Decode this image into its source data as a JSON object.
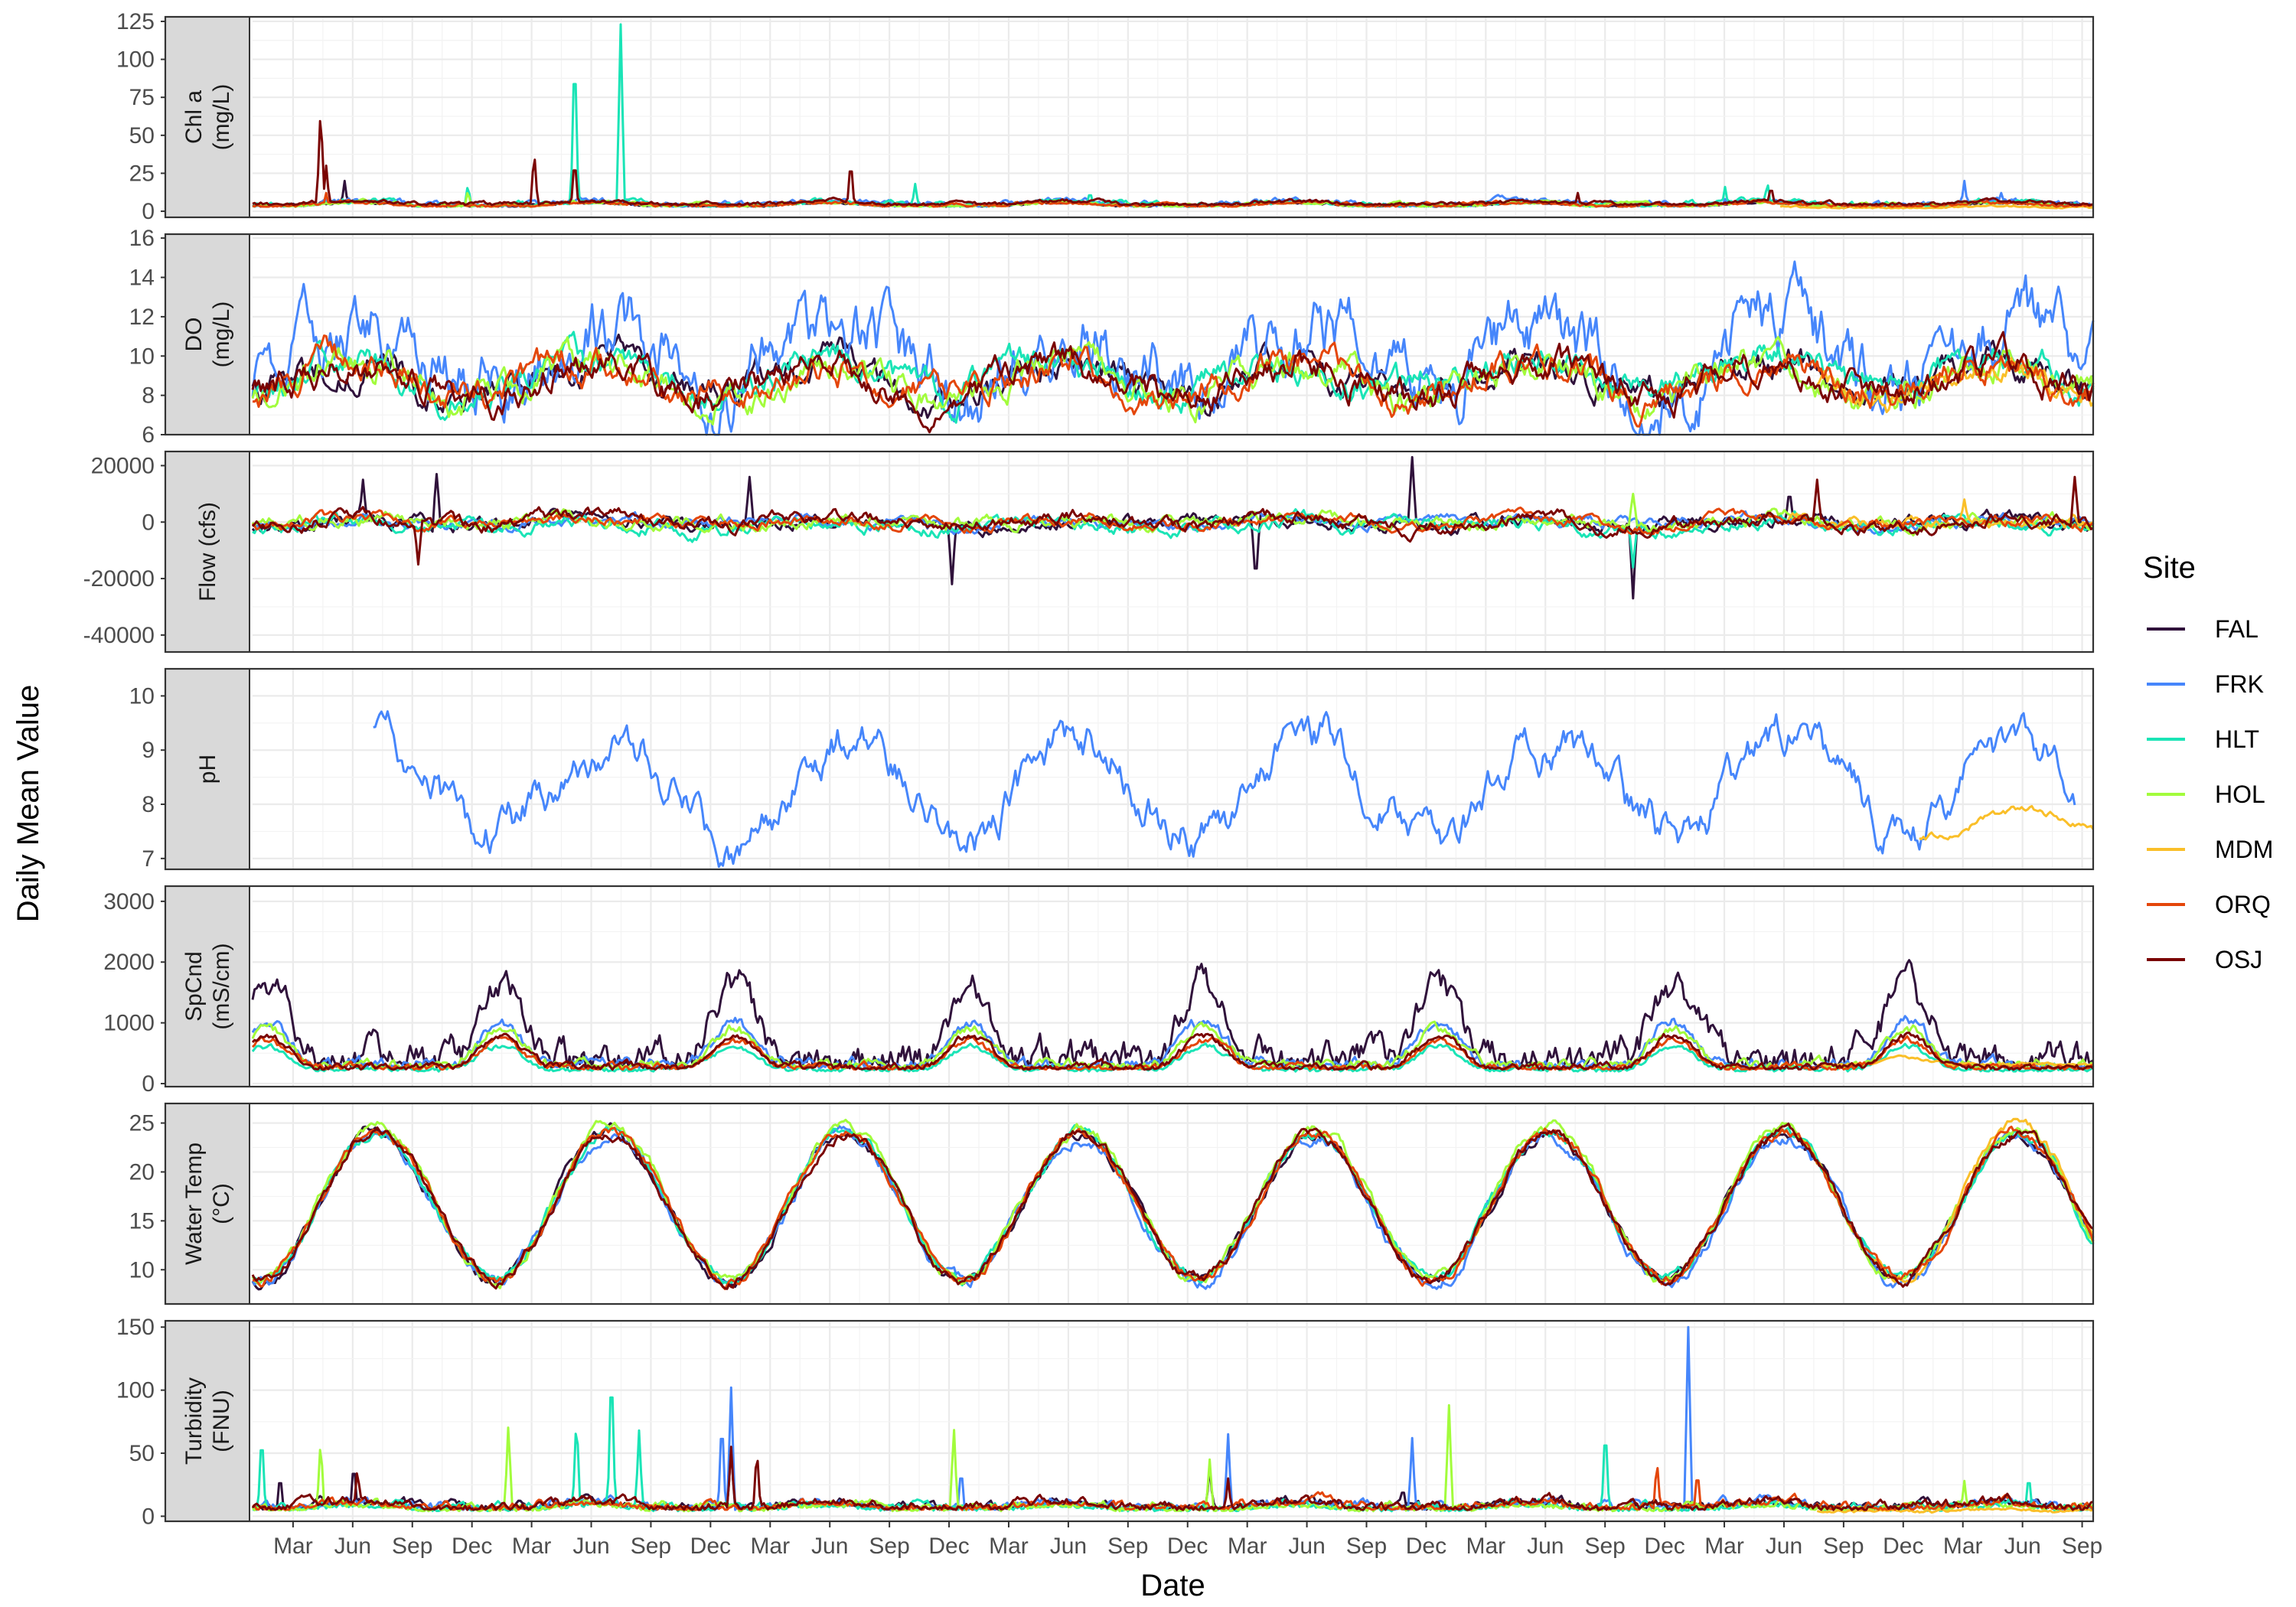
{
  "chart_data": {
    "type": "line",
    "xlabel": "Date",
    "ylabel": "Daily Mean Value",
    "x_tick_labels": [
      "Mar",
      "Jun",
      "Sep",
      "Dec",
      "Mar",
      "Jun",
      "Sep",
      "Dec",
      "Mar",
      "Jun",
      "Sep",
      "Dec",
      "Mar",
      "Jun",
      "Sep",
      "Dec",
      "Mar",
      "Jun",
      "Sep",
      "Dec",
      "Mar",
      "Jun",
      "Sep",
      "Dec",
      "Mar",
      "Jun",
      "Sep",
      "Dec",
      "Mar",
      "Jun",
      "Sep"
    ],
    "legend": {
      "title": "Site",
      "position": "right",
      "entries": [
        {
          "name": "FAL",
          "color": "#30123b"
        },
        {
          "name": "FRK",
          "color": "#4686fb"
        },
        {
          "name": "HLT",
          "color": "#1ae4b6"
        },
        {
          "name": "HOL",
          "color": "#a2fc3c"
        },
        {
          "name": "MDM",
          "color": "#fabf29"
        },
        {
          "name": "ORQ",
          "color": "#e4460a"
        },
        {
          "name": "OSJ",
          "color": "#7a0403"
        }
      ]
    },
    "grid": true,
    "panels": [
      {
        "strip": [
          "Chl a",
          "(mg/L)"
        ],
        "ylim": [
          -4,
          128
        ],
        "yticks": [
          0,
          25,
          50,
          75,
          100,
          125
        ],
        "ytick_labels": [
          "0",
          "25",
          "50",
          "75",
          "100",
          "125"
        ],
        "series": [
          {
            "name": "FAL",
            "kind": "spiky",
            "base": 3,
            "amp": 2,
            "noise": 1,
            "spikes": [
              [
                0.05,
                20
              ],
              [
                0.7,
                8
              ],
              [
                0.93,
                6
              ]
            ]
          },
          {
            "name": "FRK",
            "kind": "spiky",
            "base": 3,
            "amp": 3,
            "noise": 1.5,
            "spikes": [
              [
                0.93,
                20
              ],
              [
                0.95,
                12
              ],
              [
                0.8,
                8
              ]
            ]
          },
          {
            "name": "HLT",
            "kind": "spiky",
            "base": 3,
            "amp": 2,
            "noise": 1.5,
            "spikes": [
              [
                0.175,
                112
              ],
              [
                0.2,
                123
              ],
              [
                0.117,
                18
              ],
              [
                0.36,
                18
              ],
              [
                0.455,
                14
              ],
              [
                0.8,
                16
              ],
              [
                0.823,
                20
              ]
            ]
          },
          {
            "name": "HOL",
            "kind": "spiky",
            "base": 3,
            "amp": 2,
            "noise": 1,
            "spikes": [
              [
                0.117,
                14
              ]
            ]
          },
          {
            "name": "MDM",
            "kind": "spiky",
            "base": 2,
            "amp": 1,
            "noise": 0.5,
            "spikes": [],
            "start": 0.83
          },
          {
            "name": "ORQ",
            "kind": "spiky",
            "base": 3,
            "amp": 2,
            "noise": 1,
            "spikes": [
              [
                0.04,
                12
              ]
            ]
          },
          {
            "name": "OSJ",
            "kind": "spiky",
            "base": 4,
            "amp": 2,
            "noise": 1,
            "spikes": [
              [
                0.037,
                70
              ],
              [
                0.04,
                30
              ],
              [
                0.153,
                40
              ],
              [
                0.175,
                36
              ],
              [
                0.325,
                35
              ],
              [
                0.72,
                12
              ],
              [
                0.825,
                18
              ]
            ]
          }
        ]
      },
      {
        "strip": [
          "DO",
          "(mg/L)"
        ],
        "ylim": [
          6,
          16.2
        ],
        "yticks": [
          6,
          8,
          10,
          12,
          14,
          16
        ],
        "ytick_labels": [
          "6",
          "8",
          "10",
          "12",
          "14",
          "16"
        ],
        "series": [
          {
            "name": "FAL",
            "kind": "seasonal",
            "base": 8.9,
            "amp": 0.9,
            "noise": 0.5,
            "phase": 0.0
          },
          {
            "name": "FRK",
            "kind": "seasonal",
            "base": 9.8,
            "amp": 1.6,
            "noise": 1.1,
            "phase": -0.4
          },
          {
            "name": "HLT",
            "kind": "seasonal",
            "base": 9.0,
            "amp": 0.8,
            "noise": 0.5,
            "phase": 0.0
          },
          {
            "name": "HOL",
            "kind": "seasonal",
            "base": 8.7,
            "amp": 1.0,
            "noise": 0.5,
            "phase": 0.0
          },
          {
            "name": "MDM",
            "kind": "seasonal",
            "base": 8.5,
            "amp": 1.0,
            "noise": 0.4,
            "phase": 0.0,
            "start": 0.85
          },
          {
            "name": "ORQ",
            "kind": "seasonal",
            "base": 8.9,
            "amp": 0.8,
            "noise": 0.5,
            "phase": 0.0
          },
          {
            "name": "OSJ",
            "kind": "seasonal",
            "base": 8.8,
            "amp": 0.9,
            "noise": 0.5,
            "phase": 0.0
          }
        ]
      },
      {
        "strip": [
          "Flow (cfs)"
        ],
        "ylim": [
          -46000,
          25000
        ],
        "yticks": [
          -40000,
          -20000,
          0,
          20000
        ],
        "ytick_labels": [
          "-40000",
          "-20000",
          "0",
          "20000"
        ],
        "series": [
          {
            "name": "FAL",
            "kind": "flow",
            "base": 0,
            "amp": 1200,
            "noise": 1500,
            "spikes": [
              [
                0.06,
                15000
              ],
              [
                0.1,
                17000
              ],
              [
                0.27,
                16000
              ],
              [
                0.38,
                -22000
              ],
              [
                0.545,
                -22000
              ],
              [
                0.63,
                23000
              ],
              [
                0.75,
                -27000
              ],
              [
                0.835,
                12000
              ]
            ]
          },
          {
            "name": "FRK",
            "kind": "flow",
            "base": 0,
            "amp": 1000,
            "noise": 1200,
            "spikes": []
          },
          {
            "name": "HLT",
            "kind": "flow",
            "base": -1000,
            "amp": 1500,
            "noise": 1500,
            "spikes": [
              [
                0.75,
                -15000
              ]
            ]
          },
          {
            "name": "HOL",
            "kind": "flow",
            "base": 0,
            "amp": 1000,
            "noise": 1500,
            "spikes": [
              [
                0.75,
                10000
              ]
            ]
          },
          {
            "name": "MDM",
            "kind": "flow",
            "base": 0,
            "amp": 800,
            "noise": 1500,
            "spikes": [
              [
                0.93,
                8000
              ]
            ],
            "start": 0.83
          },
          {
            "name": "ORQ",
            "kind": "flow",
            "base": 0,
            "amp": 1500,
            "noise": 1200,
            "spikes": []
          },
          {
            "name": "OSJ",
            "kind": "flow",
            "base": 0,
            "amp": 2000,
            "noise": 1500,
            "spikes": [
              [
                0.85,
                15000
              ],
              [
                0.99,
                16000
              ],
              [
                0.09,
                -15000
              ]
            ]
          }
        ]
      },
      {
        "strip": [
          "pH"
        ],
        "ylim": [
          6.8,
          10.5
        ],
        "yticks": [
          7,
          8,
          9,
          10
        ],
        "ytick_labels": [
          "7",
          "8",
          "9",
          "10"
        ],
        "series": [
          {
            "name": "FRK",
            "kind": "seasonal",
            "base": 8.3,
            "amp": 0.9,
            "noise": 0.25,
            "phase": -0.6,
            "start": 0.065,
            "end": 0.99
          },
          {
            "name": "MDM",
            "kind": "seasonal",
            "base": 7.6,
            "amp": 0.3,
            "noise": 0.05,
            "phase": -0.6,
            "start": 0.905
          }
        ]
      },
      {
        "strip": [
          "SpCnd",
          "(mS/cm)"
        ],
        "ylim": [
          -50,
          3250
        ],
        "yticks": [
          0,
          1000,
          2000,
          3000
        ],
        "ytick_labels": [
          "0",
          "1000",
          "2000",
          "3000"
        ],
        "series": [
          {
            "name": "FAL",
            "kind": "cond",
            "base": 250,
            "amp": 1200,
            "noise": 220,
            "phase": 0.0
          },
          {
            "name": "FRK",
            "kind": "cond",
            "base": 250,
            "amp": 700,
            "noise": 80,
            "phase": 0.0
          },
          {
            "name": "HLT",
            "kind": "cond",
            "base": 200,
            "amp": 380,
            "noise": 40,
            "phase": 0.0
          },
          {
            "name": "HOL",
            "kind": "cond",
            "base": 250,
            "amp": 600,
            "noise": 70,
            "phase": 0.0
          },
          {
            "name": "MDM",
            "kind": "cond",
            "base": 300,
            "amp": 100,
            "noise": 20,
            "phase": 0.0,
            "start": 0.85
          },
          {
            "name": "ORQ",
            "kind": "cond",
            "base": 230,
            "amp": 450,
            "noise": 50,
            "phase": 0.0
          },
          {
            "name": "OSJ",
            "kind": "cond",
            "base": 230,
            "amp": 520,
            "noise": 50,
            "phase": 0.0
          }
        ]
      },
      {
        "strip": [
          "Water Temp",
          "(°C)"
        ],
        "ylim": [
          6.5,
          27
        ],
        "yticks": [
          10,
          15,
          20,
          25
        ],
        "ytick_labels": [
          "10",
          "15",
          "20",
          "25"
        ],
        "series": [
          {
            "name": "FAL",
            "kind": "temp",
            "base": 16.5,
            "amp": 7.5,
            "noise": 0.6
          },
          {
            "name": "FRK",
            "kind": "temp",
            "base": 16.2,
            "amp": 7.5,
            "noise": 0.7
          },
          {
            "name": "HLT",
            "kind": "temp",
            "base": 16.5,
            "amp": 7.5,
            "noise": 0.6
          },
          {
            "name": "HOL",
            "kind": "temp",
            "base": 16.8,
            "amp": 7.8,
            "noise": 0.6
          },
          {
            "name": "MDM",
            "kind": "temp",
            "base": 17.0,
            "amp": 7.8,
            "noise": 0.6,
            "start": 0.88
          },
          {
            "name": "ORQ",
            "kind": "temp",
            "base": 16.6,
            "amp": 7.6,
            "noise": 0.6
          },
          {
            "name": "OSJ",
            "kind": "temp",
            "base": 16.5,
            "amp": 7.5,
            "noise": 0.6
          }
        ]
      },
      {
        "strip": [
          "Turbidity",
          "(FNU)"
        ],
        "ylim": [
          -4,
          155
        ],
        "yticks": [
          0,
          50,
          100,
          150
        ],
        "ytick_labels": [
          "0",
          "50",
          "100",
          "150"
        ],
        "series": [
          {
            "name": "FAL",
            "kind": "spiky",
            "base": 5,
            "amp": 4,
            "noise": 3,
            "spikes": [
              [
                0.015,
                35
              ],
              [
                0.055,
                45
              ],
              [
                0.26,
                55
              ],
              [
                0.52,
                40
              ],
              [
                0.625,
                25
              ]
            ]
          },
          {
            "name": "FRK",
            "kind": "spiky",
            "base": 5,
            "amp": 4,
            "noise": 3,
            "spikes": [
              [
                0.26,
                102
              ],
              [
                0.255,
                82
              ],
              [
                0.53,
                65
              ],
              [
                0.63,
                62
              ],
              [
                0.78,
                150
              ],
              [
                0.385,
                40
              ]
            ]
          },
          {
            "name": "HLT",
            "kind": "spiky",
            "base": 4,
            "amp": 3,
            "noise": 3,
            "spikes": [
              [
                0.176,
                82
              ],
              [
                0.195,
                126
              ],
              [
                0.21,
                68
              ],
              [
                0.735,
                75
              ],
              [
                0.965,
                35
              ],
              [
                0.005,
                70
              ]
            ]
          },
          {
            "name": "HOL",
            "kind": "spiky",
            "base": 4,
            "amp": 3,
            "noise": 3,
            "spikes": [
              [
                0.037,
                62
              ],
              [
                0.139,
                74
              ],
              [
                0.381,
                72
              ],
              [
                0.65,
                88
              ],
              [
                0.52,
                45
              ],
              [
                0.93,
                28
              ]
            ]
          },
          {
            "name": "MDM",
            "kind": "spiky",
            "base": 3,
            "amp": 2,
            "noise": 1,
            "spikes": [],
            "start": 0.85
          },
          {
            "name": "ORQ",
            "kind": "spiky",
            "base": 5,
            "amp": 4,
            "noise": 3,
            "spikes": [
              [
                0.763,
                45
              ],
              [
                0.785,
                38
              ]
            ]
          },
          {
            "name": "OSJ",
            "kind": "spiky",
            "base": 5,
            "amp": 5,
            "noise": 3,
            "spikes": [
              [
                0.26,
                55
              ],
              [
                0.274,
                55
              ],
              [
                0.057,
                40
              ],
              [
                0.53,
                30
              ]
            ]
          }
        ]
      }
    ]
  }
}
